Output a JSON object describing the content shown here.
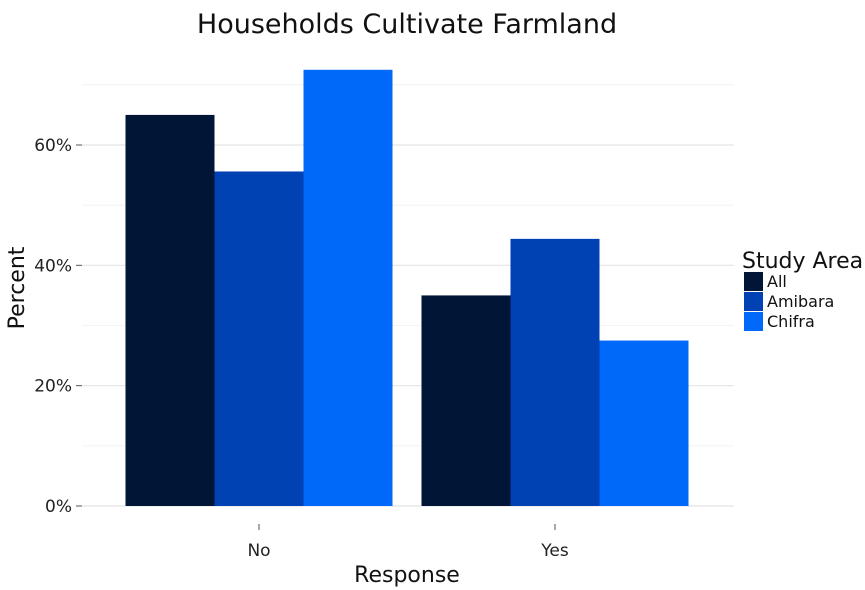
{
  "chart_data": {
    "type": "bar",
    "title": "Households Cultivate Farmland",
    "xlabel": "Response",
    "ylabel": "Percent",
    "categories": [
      "No",
      "Yes"
    ],
    "series": [
      {
        "name": "All",
        "values": [
          65,
          35
        ],
        "color": "#011636"
      },
      {
        "name": "Amibara",
        "values": [
          55.6,
          44.4
        ],
        "color": "#0041b3"
      },
      {
        "name": "Chifra",
        "values": [
          72.5,
          27.5
        ],
        "color": "#0069fa"
      }
    ],
    "yticks": [
      0,
      20,
      40,
      60
    ],
    "ytick_labels": [
      "0%",
      "20%",
      "40%",
      "60%"
    ],
    "ylim": [
      0,
      72.5
    ],
    "grid": true,
    "legend": {
      "title": "Study Area",
      "position": "right"
    }
  }
}
